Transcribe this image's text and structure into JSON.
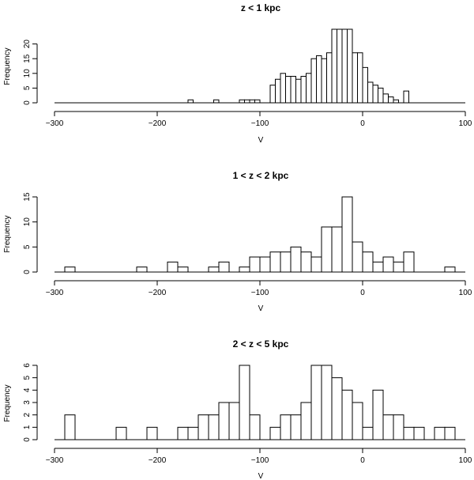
{
  "chart_data": [
    {
      "type": "bar",
      "title": "z < 1 kpc",
      "xlabel": "V",
      "ylabel": "Frequency",
      "xlim": [
        -300,
        100
      ],
      "ylim": [
        0,
        25
      ],
      "bin_width": 5,
      "xticks": [
        -300,
        -200,
        -100,
        0,
        100
      ],
      "yticks": [
        0,
        5,
        10,
        15,
        20
      ],
      "bins": [
        {
          "x": -170,
          "count": 1
        },
        {
          "x": -145,
          "count": 1
        },
        {
          "x": -120,
          "count": 1
        },
        {
          "x": -115,
          "count": 1
        },
        {
          "x": -110,
          "count": 1
        },
        {
          "x": -105,
          "count": 1
        },
        {
          "x": -90,
          "count": 6
        },
        {
          "x": -85,
          "count": 8
        },
        {
          "x": -80,
          "count": 10
        },
        {
          "x": -75,
          "count": 9
        },
        {
          "x": -70,
          "count": 9
        },
        {
          "x": -65,
          "count": 8
        },
        {
          "x": -60,
          "count": 9
        },
        {
          "x": -55,
          "count": 10
        },
        {
          "x": -50,
          "count": 15
        },
        {
          "x": -45,
          "count": 16
        },
        {
          "x": -40,
          "count": 15
        },
        {
          "x": -35,
          "count": 17
        },
        {
          "x": -30,
          "count": 25
        },
        {
          "x": -25,
          "count": 25
        },
        {
          "x": -20,
          "count": 25
        },
        {
          "x": -15,
          "count": 25
        },
        {
          "x": -10,
          "count": 17
        },
        {
          "x": -5,
          "count": 17
        },
        {
          "x": 0,
          "count": 12
        },
        {
          "x": 5,
          "count": 7
        },
        {
          "x": 10,
          "count": 6
        },
        {
          "x": 15,
          "count": 5
        },
        {
          "x": 20,
          "count": 3
        },
        {
          "x": 25,
          "count": 2
        },
        {
          "x": 30,
          "count": 1
        },
        {
          "x": 40,
          "count": 4
        }
      ]
    },
    {
      "type": "bar",
      "title": "1 < z < 2 kpc",
      "xlabel": "V",
      "ylabel": "Frequency",
      "xlim": [
        -300,
        100
      ],
      "ylim": [
        0,
        15
      ],
      "bin_width": 10,
      "xticks": [
        -300,
        -200,
        -100,
        0,
        100
      ],
      "yticks": [
        0,
        5,
        10,
        15
      ],
      "bins": [
        {
          "x": -290,
          "count": 1
        },
        {
          "x": -220,
          "count": 1
        },
        {
          "x": -190,
          "count": 2
        },
        {
          "x": -180,
          "count": 1
        },
        {
          "x": -150,
          "count": 1
        },
        {
          "x": -140,
          "count": 2
        },
        {
          "x": -120,
          "count": 1
        },
        {
          "x": -110,
          "count": 3
        },
        {
          "x": -100,
          "count": 3
        },
        {
          "x": -90,
          "count": 4
        },
        {
          "x": -80,
          "count": 4
        },
        {
          "x": -70,
          "count": 5
        },
        {
          "x": -60,
          "count": 4
        },
        {
          "x": -50,
          "count": 3
        },
        {
          "x": -40,
          "count": 9
        },
        {
          "x": -30,
          "count": 9
        },
        {
          "x": -20,
          "count": 15
        },
        {
          "x": -10,
          "count": 6
        },
        {
          "x": 0,
          "count": 4
        },
        {
          "x": 10,
          "count": 2
        },
        {
          "x": 20,
          "count": 3
        },
        {
          "x": 30,
          "count": 2
        },
        {
          "x": 40,
          "count": 4
        },
        {
          "x": 80,
          "count": 1
        }
      ]
    },
    {
      "type": "bar",
      "title": "2 < z < 5 kpc",
      "xlabel": "V",
      "ylabel": "Frequency",
      "xlim": [
        -300,
        100
      ],
      "ylim": [
        0,
        6
      ],
      "bin_width": 10,
      "xticks": [
        -300,
        -200,
        -100,
        0,
        100
      ],
      "yticks": [
        0,
        1,
        2,
        3,
        4,
        5,
        6
      ],
      "bins": [
        {
          "x": -290,
          "count": 2
        },
        {
          "x": -240,
          "count": 1
        },
        {
          "x": -210,
          "count": 1
        },
        {
          "x": -180,
          "count": 1
        },
        {
          "x": -170,
          "count": 1
        },
        {
          "x": -160,
          "count": 2
        },
        {
          "x": -150,
          "count": 2
        },
        {
          "x": -140,
          "count": 3
        },
        {
          "x": -130,
          "count": 3
        },
        {
          "x": -120,
          "count": 6
        },
        {
          "x": -110,
          "count": 2
        },
        {
          "x": -90,
          "count": 1
        },
        {
          "x": -80,
          "count": 2
        },
        {
          "x": -70,
          "count": 2
        },
        {
          "x": -60,
          "count": 3
        },
        {
          "x": -50,
          "count": 6
        },
        {
          "x": -40,
          "count": 6
        },
        {
          "x": -30,
          "count": 5
        },
        {
          "x": -20,
          "count": 4
        },
        {
          "x": -10,
          "count": 3
        },
        {
          "x": 0,
          "count": 1
        },
        {
          "x": 10,
          "count": 4
        },
        {
          "x": 20,
          "count": 2
        },
        {
          "x": 30,
          "count": 2
        },
        {
          "x": 40,
          "count": 1
        },
        {
          "x": 50,
          "count": 1
        },
        {
          "x": 70,
          "count": 1
        },
        {
          "x": 80,
          "count": 1
        }
      ]
    }
  ]
}
